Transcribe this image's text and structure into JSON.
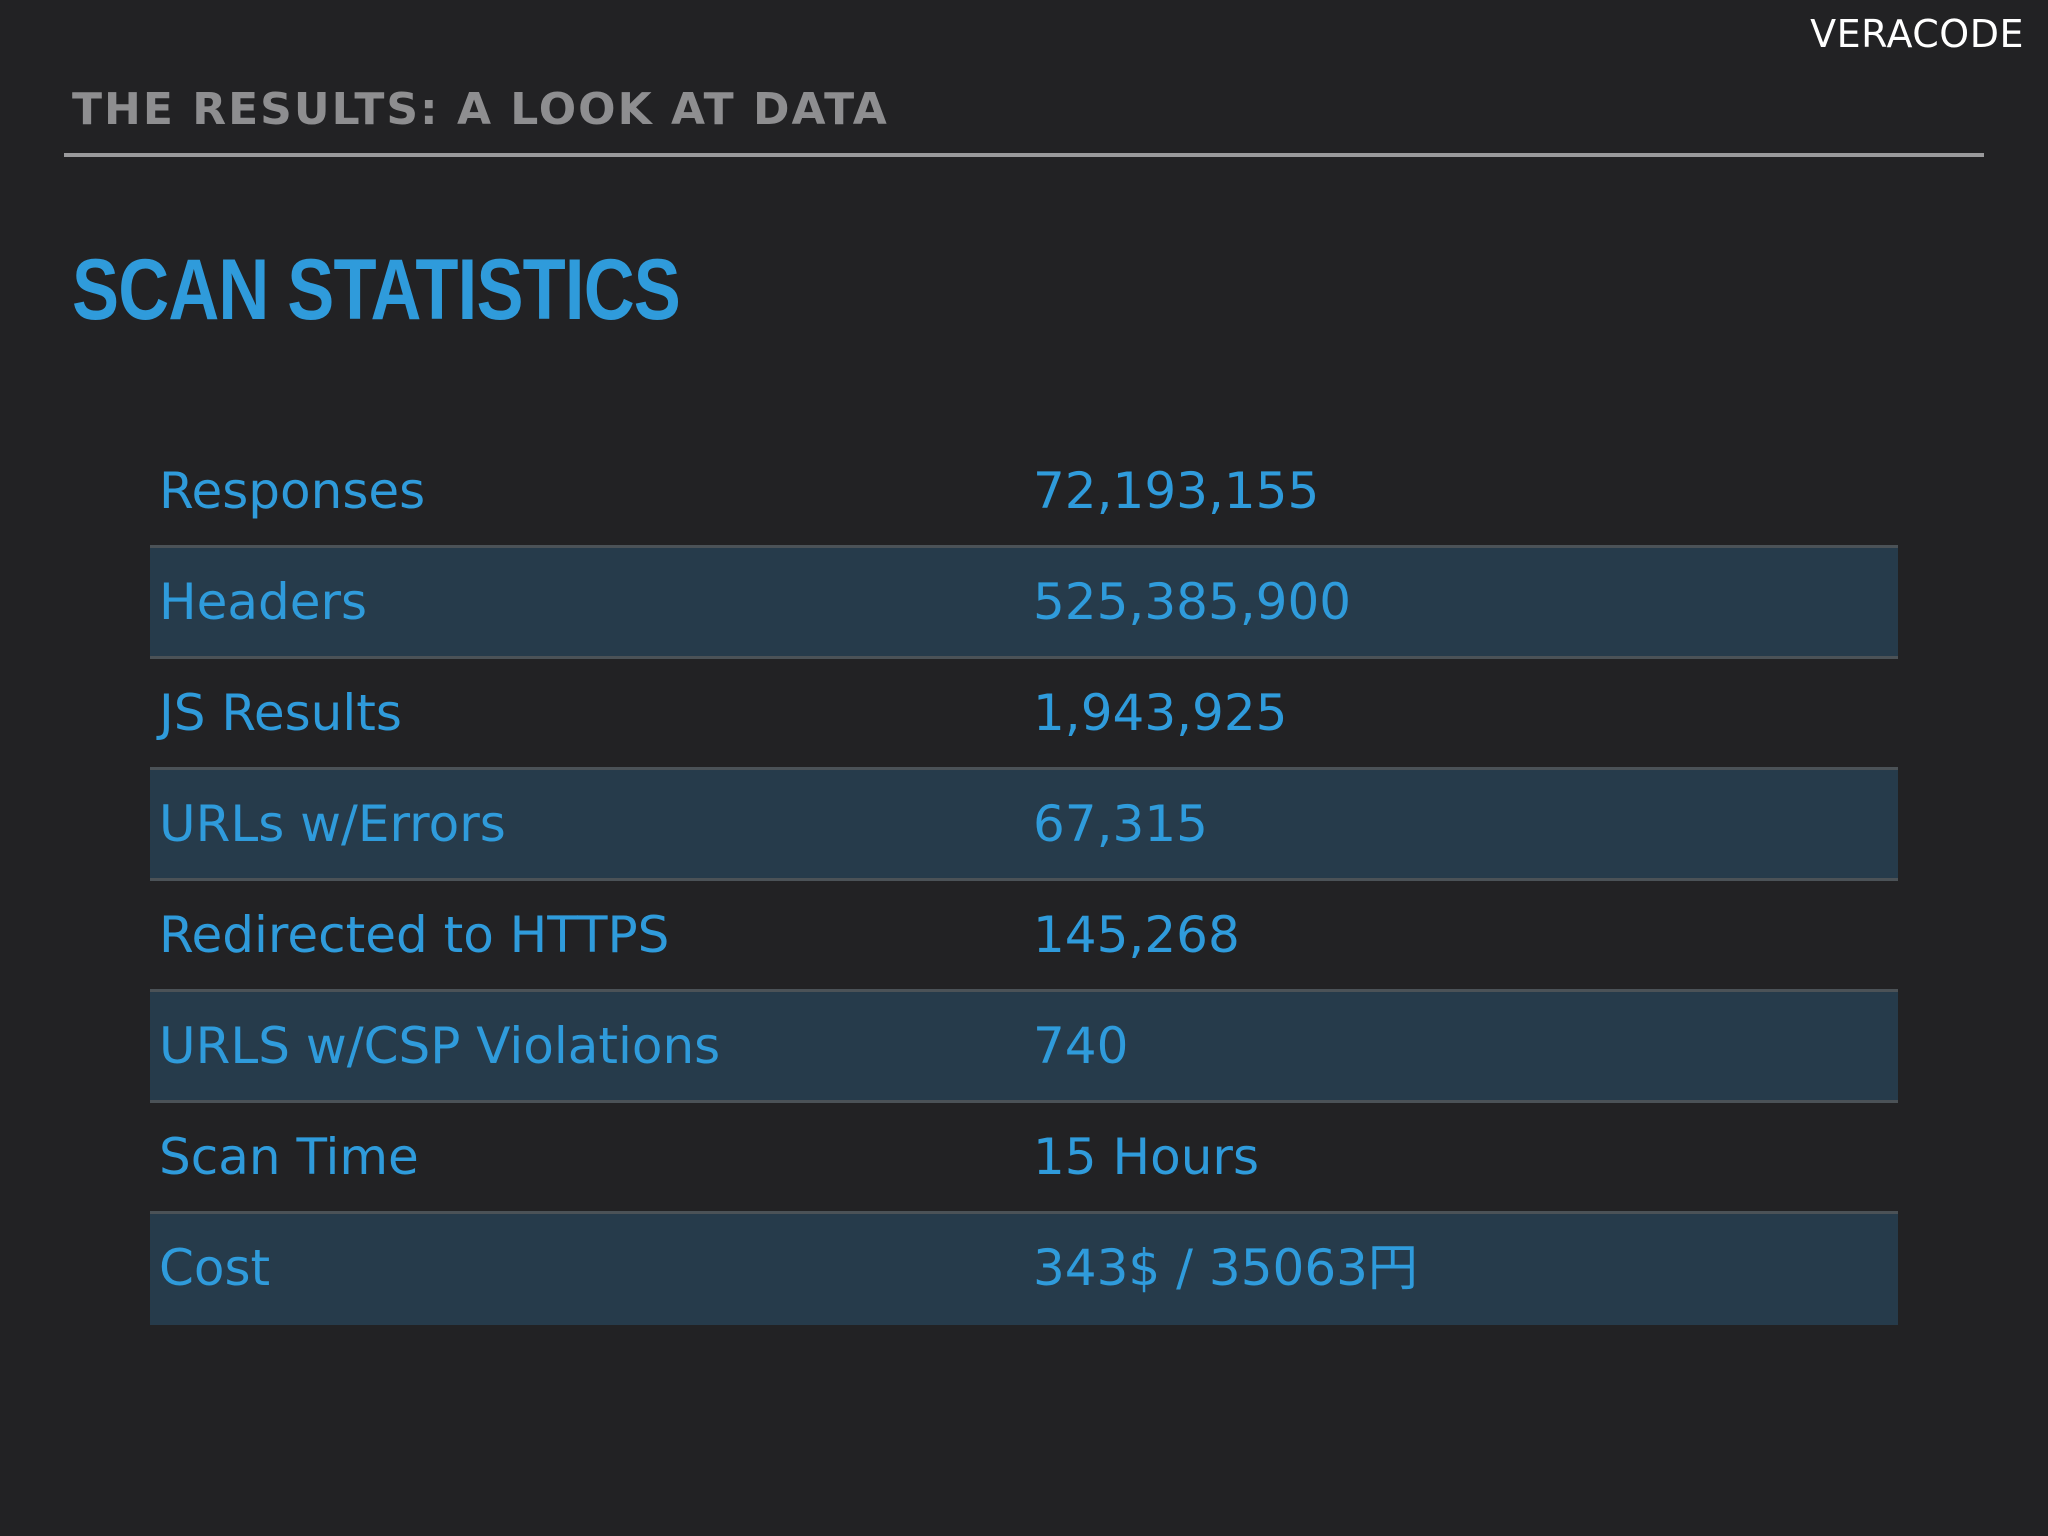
{
  "brand": "VERACODE",
  "section_label": "THE RESULTS: A LOOK AT DATA",
  "title": "SCAN STATISTICS",
  "stats": [
    {
      "label": "Responses",
      "value": "72,193,155"
    },
    {
      "label": "Headers",
      "value": "525,385,900"
    },
    {
      "label": "JS Results",
      "value": "1,943,925"
    },
    {
      "label": "URLs w/Errors",
      "value": "67,315"
    },
    {
      "label": "Redirected to HTTPS",
      "value": "145,268"
    },
    {
      "label": "URLS w/CSP Violations",
      "value": "740"
    },
    {
      "label": "Scan Time",
      "value": "15 Hours"
    },
    {
      "label": "Cost",
      "value": "343$ / 35063円"
    }
  ],
  "colors": {
    "background": "#222224",
    "accent": "#2f9bdb",
    "row_shade": "#263b4b",
    "muted_text": "#8e8e90",
    "brand_text": "#ffffff"
  }
}
